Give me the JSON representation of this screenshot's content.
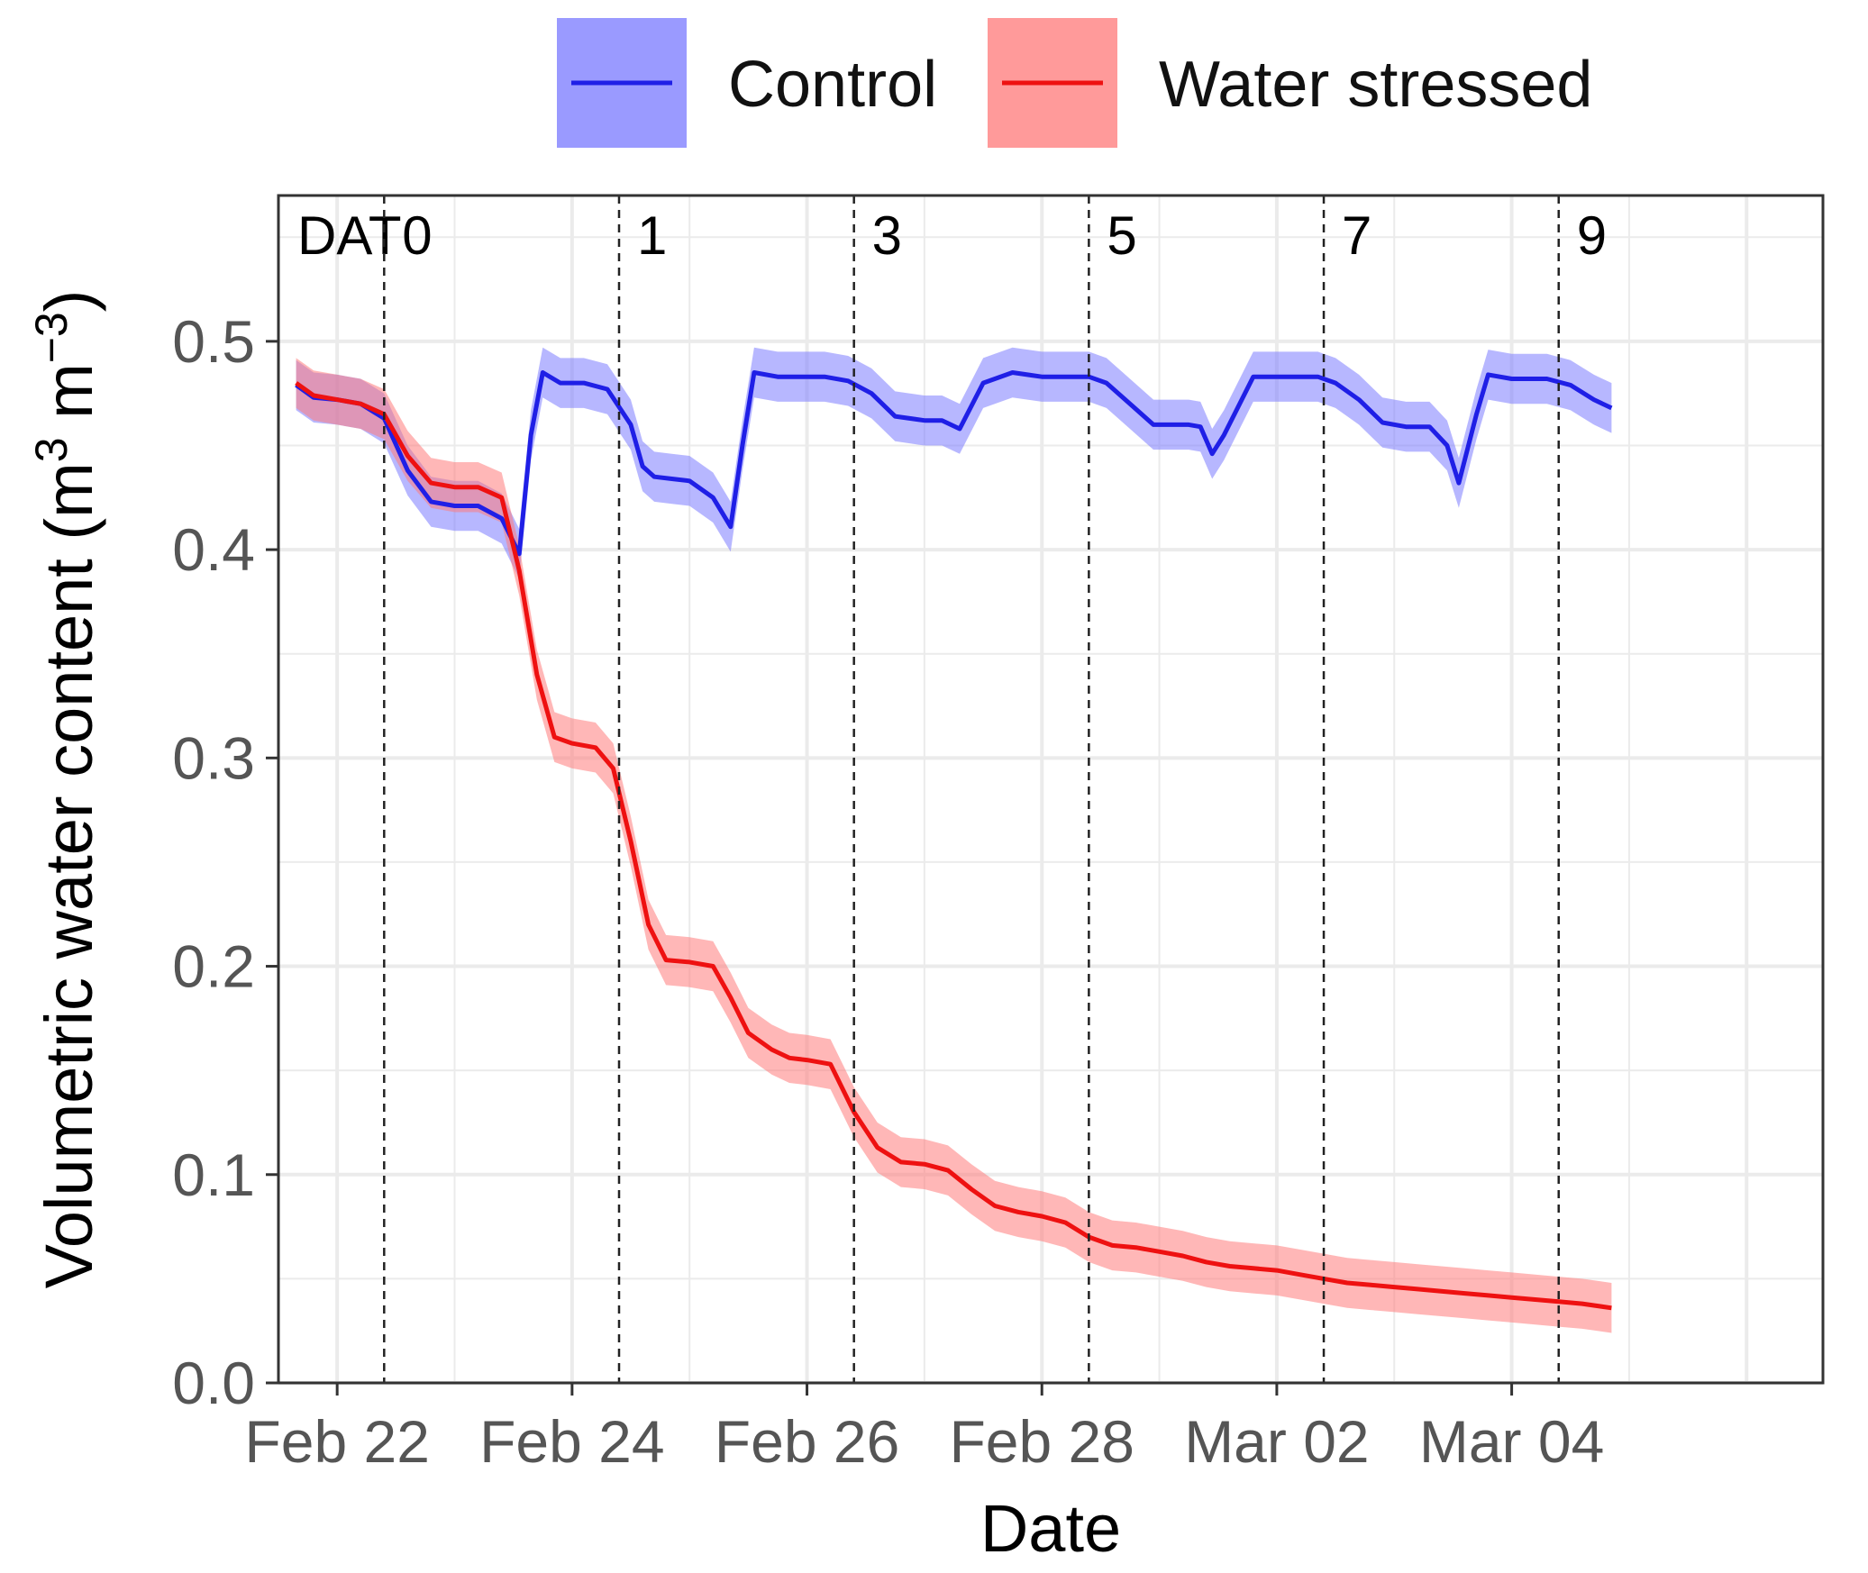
{
  "chart_data": {
    "type": "line",
    "title": "",
    "xlabel": "Date",
    "ylabel_main": "Volumetric water content (m",
    "ylabel_sup1": "3",
    "ylabel_mid": " m",
    "ylabel_sup2": "−3",
    "ylabel_end": ")",
    "ylim": [
      0.0,
      0.57
    ],
    "xlim_days": [
      -0.5,
      12.65
    ],
    "y_ticks": [
      {
        "value": 0.0,
        "label": "0.0"
      },
      {
        "value": 0.1,
        "label": "0.1"
      },
      {
        "value": 0.2,
        "label": "0.2"
      },
      {
        "value": 0.3,
        "label": "0.3"
      },
      {
        "value": 0.4,
        "label": "0.4"
      },
      {
        "value": 0.5,
        "label": "0.5"
      }
    ],
    "x_ticks": [
      {
        "day": 0,
        "label": "Feb 22"
      },
      {
        "day": 2,
        "label": "Feb 24"
      },
      {
        "day": 4,
        "label": "Feb 26"
      },
      {
        "day": 6,
        "label": "Feb 28"
      },
      {
        "day": 8,
        "label": "Mar 02"
      },
      {
        "day": 10,
        "label": "Mar 04"
      }
    ],
    "dat_title": "DAT",
    "dat_markers": [
      {
        "day": 0.4,
        "label": "0"
      },
      {
        "day": 2.4,
        "label": "1"
      },
      {
        "day": 4.4,
        "label": "3"
      },
      {
        "day": 6.4,
        "label": "5"
      },
      {
        "day": 8.4,
        "label": "7"
      },
      {
        "day": 10.4,
        "label": "9"
      }
    ],
    "legend_position": "top",
    "grid": true,
    "series": [
      {
        "name": "Control",
        "color": "#1f1fe6",
        "band_color": "#7b7bff",
        "band_halfwidth": 0.012,
        "x": [
          -0.35,
          -0.2,
          0,
          0.2,
          0.4,
          0.6,
          0.8,
          1.0,
          1.2,
          1.4,
          1.55,
          1.65,
          1.75,
          1.9,
          2.1,
          2.3,
          2.5,
          2.6,
          2.7,
          2.85,
          3.0,
          3.2,
          3.35,
          3.45,
          3.55,
          3.75,
          3.95,
          4.15,
          4.35,
          4.55,
          4.75,
          5.0,
          5.15,
          5.3,
          5.5,
          5.75,
          6.0,
          6.25,
          6.4,
          6.55,
          6.75,
          6.95,
          7.1,
          7.25,
          7.35,
          7.45,
          7.55,
          7.8,
          8.0,
          8.2,
          8.35,
          8.5,
          8.7,
          8.9,
          9.1,
          9.3,
          9.45,
          9.55,
          9.7,
          9.8,
          10.0,
          10.3,
          10.5,
          10.7,
          10.85
        ],
        "y": [
          0.479,
          0.473,
          0.472,
          0.47,
          0.463,
          0.438,
          0.423,
          0.421,
          0.421,
          0.415,
          0.398,
          0.455,
          0.485,
          0.48,
          0.48,
          0.477,
          0.46,
          0.44,
          0.435,
          0.434,
          0.433,
          0.425,
          0.411,
          0.45,
          0.485,
          0.483,
          0.483,
          0.483,
          0.481,
          0.475,
          0.464,
          0.462,
          0.462,
          0.458,
          0.48,
          0.485,
          0.483,
          0.483,
          0.483,
          0.48,
          0.47,
          0.46,
          0.46,
          0.46,
          0.459,
          0.446,
          0.455,
          0.483,
          0.483,
          0.483,
          0.483,
          0.48,
          0.472,
          0.461,
          0.459,
          0.459,
          0.45,
          0.432,
          0.465,
          0.484,
          0.482,
          0.482,
          0.479,
          0.472,
          0.468
        ]
      },
      {
        "name": "Water stressed",
        "color": "#ee1111",
        "band_color": "#ff7b7b",
        "band_halfwidth": 0.012,
        "x": [
          -0.35,
          -0.2,
          0,
          0.2,
          0.4,
          0.6,
          0.8,
          1.0,
          1.2,
          1.4,
          1.55,
          1.7,
          1.85,
          2.0,
          2.2,
          2.35,
          2.5,
          2.65,
          2.8,
          3.0,
          3.2,
          3.35,
          3.5,
          3.7,
          3.85,
          4.0,
          4.2,
          4.4,
          4.6,
          4.8,
          5.0,
          5.2,
          5.4,
          5.6,
          5.8,
          6.0,
          6.2,
          6.4,
          6.6,
          6.8,
          7.0,
          7.2,
          7.4,
          7.6,
          7.8,
          8.0,
          8.2,
          8.4,
          8.6,
          8.8,
          9.0,
          9.2,
          9.4,
          9.6,
          9.8,
          10.0,
          10.2,
          10.4,
          10.6,
          10.85
        ],
        "y": [
          0.48,
          0.474,
          0.472,
          0.47,
          0.465,
          0.445,
          0.432,
          0.43,
          0.43,
          0.425,
          0.39,
          0.34,
          0.31,
          0.307,
          0.305,
          0.295,
          0.26,
          0.22,
          0.203,
          0.202,
          0.2,
          0.185,
          0.168,
          0.16,
          0.156,
          0.155,
          0.153,
          0.13,
          0.113,
          0.106,
          0.105,
          0.102,
          0.093,
          0.085,
          0.082,
          0.08,
          0.077,
          0.07,
          0.066,
          0.065,
          0.063,
          0.061,
          0.058,
          0.056,
          0.055,
          0.054,
          0.052,
          0.05,
          0.048,
          0.047,
          0.046,
          0.045,
          0.044,
          0.043,
          0.042,
          0.041,
          0.04,
          0.039,
          0.038,
          0.036
        ]
      }
    ]
  }
}
